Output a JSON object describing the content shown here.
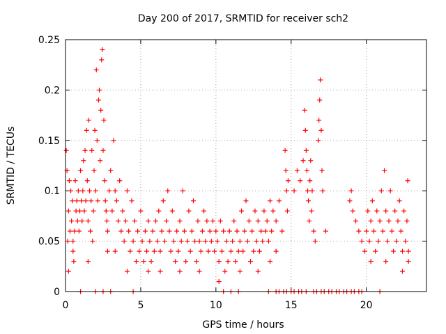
{
  "chart_data": {
    "type": "scatter",
    "title": "Day 200 of 2017, SRMTID for receiver sch2",
    "xlabel": "GPS time / hours",
    "ylabel": "SRMTID / TECUs",
    "xlim": [
      0,
      24
    ],
    "ylim": [
      0,
      0.25
    ],
    "xticks": [
      0,
      5,
      10,
      15,
      20
    ],
    "xtick_labels": [
      "0",
      "5",
      "10",
      "15",
      "20"
    ],
    "yticks": [
      0,
      0.05,
      0.1,
      0.15,
      0.2,
      0.25
    ],
    "ytick_labels": [
      "0",
      "0.05",
      "0.1",
      "0.15",
      "0.2",
      "0.25"
    ],
    "grid": true,
    "marker": "+",
    "color": "#ff0000",
    "series": [
      {
        "name": "SRMTID",
        "points": [
          [
            0.05,
            0.14
          ],
          [
            0.1,
            0.12
          ],
          [
            0.15,
            0.05
          ],
          [
            0.2,
            0.08
          ],
          [
            0.25,
            0.11
          ],
          [
            0.3,
            0.06
          ],
          [
            0.35,
            0.1
          ],
          [
            0.4,
            0.07
          ],
          [
            0.45,
            0.09
          ],
          [
            0.5,
            0.04
          ],
          [
            0.55,
            0.03
          ],
          [
            0.6,
            0.06
          ],
          [
            0.65,
            0.11
          ],
          [
            0.7,
            0.08
          ],
          [
            0.75,
            0.09
          ],
          [
            0.8,
            0.07
          ],
          [
            0.85,
            0.1
          ],
          [
            0.9,
            0.06
          ],
          [
            0.95,
            0.08
          ],
          [
            1.0,
            0.12
          ],
          [
            1.05,
            0.09
          ],
          [
            1.1,
            0.07
          ],
          [
            1.15,
            0.1
          ],
          [
            1.2,
            0.13
          ],
          [
            1.25,
            0.08
          ],
          [
            1.3,
            0.14
          ],
          [
            1.35,
            0.09
          ],
          [
            1.4,
            0.16
          ],
          [
            1.45,
            0.11
          ],
          [
            1.5,
            0.07
          ],
          [
            1.55,
            0.17
          ],
          [
            1.6,
            0.1
          ],
          [
            1.65,
            0.06
          ],
          [
            1.7,
            0.09
          ],
          [
            1.75,
            0.14
          ],
          [
            1.8,
            0.05
          ],
          [
            1.85,
            0.08
          ],
          [
            1.9,
            0.12
          ],
          [
            1.95,
            0.16
          ],
          [
            2.0,
            0.1
          ],
          [
            2.05,
            0.22
          ],
          [
            2.1,
            0.15
          ],
          [
            2.15,
            0.09
          ],
          [
            2.2,
            0.19
          ],
          [
            2.25,
            0.2
          ],
          [
            2.3,
            0.13
          ],
          [
            2.35,
            0.18
          ],
          [
            2.4,
            0.23
          ],
          [
            2.45,
            0.24
          ],
          [
            2.5,
            0.14
          ],
          [
            2.55,
            0.17
          ],
          [
            2.6,
            0.11
          ],
          [
            2.65,
            0.09
          ],
          [
            2.7,
            0.08
          ],
          [
            2.75,
            0.07
          ],
          [
            2.8,
            0.06
          ],
          [
            2.9,
            0.1
          ],
          [
            3.0,
            0.12
          ],
          [
            3.1,
            0.08
          ],
          [
            3.2,
            0.15
          ],
          [
            3.3,
            0.1
          ],
          [
            3.4,
            0.09
          ],
          [
            3.5,
            0.07
          ],
          [
            3.6,
            0.11
          ],
          [
            3.7,
            0.06
          ],
          [
            3.8,
            0.08
          ],
          [
            3.9,
            0.05
          ],
          [
            4.0,
            0.07
          ],
          [
            4.1,
            0.1
          ],
          [
            4.2,
            0.06
          ],
          [
            4.3,
            0.04
          ],
          [
            4.4,
            0.09
          ],
          [
            4.5,
            0.05
          ],
          [
            4.6,
            0.07
          ],
          [
            4.7,
            0.03
          ],
          [
            4.8,
            0.06
          ],
          [
            4.9,
            0.04
          ],
          [
            5.0,
            0.08
          ],
          [
            5.1,
            0.05
          ],
          [
            5.2,
            0.03
          ],
          [
            5.3,
            0.06
          ],
          [
            5.4,
            0.04
          ],
          [
            5.5,
            0.07
          ],
          [
            5.6,
            0.05
          ],
          [
            5.7,
            0.03
          ],
          [
            5.8,
            0.06
          ],
          [
            5.9,
            0.04
          ],
          [
            6.0,
            0.07
          ],
          [
            6.1,
            0.05
          ],
          [
            6.2,
            0.08
          ],
          [
            6.3,
            0.04
          ],
          [
            6.4,
            0.06
          ],
          [
            6.5,
            0.09
          ],
          [
            6.6,
            0.05
          ],
          [
            6.7,
            0.07
          ],
          [
            6.8,
            0.1
          ],
          [
            6.9,
            0.06
          ],
          [
            7.0,
            0.04
          ],
          [
            7.1,
            0.08
          ],
          [
            7.2,
            0.05
          ],
          [
            7.3,
            0.03
          ],
          [
            7.4,
            0.06
          ],
          [
            7.5,
            0.04
          ],
          [
            7.6,
            0.07
          ],
          [
            7.7,
            0.05
          ],
          [
            7.8,
            0.1
          ],
          [
            7.9,
            0.06
          ],
          [
            8.0,
            0.03
          ],
          [
            8.1,
            0.05
          ],
          [
            8.2,
            0.08
          ],
          [
            8.3,
            0.04
          ],
          [
            8.4,
            0.06
          ],
          [
            8.5,
            0.09
          ],
          [
            8.6,
            0.05
          ],
          [
            8.7,
            0.03
          ],
          [
            8.8,
            0.07
          ],
          [
            8.9,
            0.05
          ],
          [
            9.0,
            0.04
          ],
          [
            9.1,
            0.06
          ],
          [
            9.2,
            0.08
          ],
          [
            9.3,
            0.05
          ],
          [
            9.4,
            0.07
          ],
          [
            9.5,
            0.04
          ],
          [
            9.6,
            0.06
          ],
          [
            9.7,
            0.05
          ],
          [
            9.8,
            0.07
          ],
          [
            9.9,
            0.04
          ],
          [
            10.0,
            0.06
          ],
          [
            10.1,
            0.05
          ],
          [
            10.2,
            0.03
          ],
          [
            10.3,
            0.07
          ],
          [
            10.4,
            0.04
          ],
          [
            10.5,
            0.06
          ],
          [
            10.6,
            0.02
          ],
          [
            10.7,
            0.05
          ],
          [
            10.8,
            0.03
          ],
          [
            10.9,
            0.06
          ],
          [
            11.0,
            0.04
          ],
          [
            11.1,
            0.05
          ],
          [
            11.2,
            0.07
          ],
          [
            11.3,
            0.03
          ],
          [
            11.4,
            0.06
          ],
          [
            11.5,
            0.04
          ],
          [
            11.6,
            0.05
          ],
          [
            11.7,
            0.08
          ],
          [
            11.8,
            0.04
          ],
          [
            11.9,
            0.06
          ],
          [
            12.0,
            0.09
          ],
          [
            12.1,
            0.05
          ],
          [
            12.2,
            0.07
          ],
          [
            12.3,
            0.03
          ],
          [
            12.4,
            0.06
          ],
          [
            12.5,
            0.04
          ],
          [
            12.6,
            0.08
          ],
          [
            12.7,
            0.05
          ],
          [
            12.8,
            0.07
          ],
          [
            12.9,
            0.04
          ],
          [
            13.0,
            0.06
          ],
          [
            13.1,
            0.05
          ],
          [
            13.2,
            0.08
          ],
          [
            13.3,
            0.06
          ],
          [
            13.4,
            0.07
          ],
          [
            13.5,
            0.05
          ],
          [
            13.6,
            0.09
          ],
          [
            13.7,
            0.06
          ],
          [
            13.8,
            0.08
          ],
          [
            14.0,
            0.07
          ],
          [
            14.2,
            0.09
          ],
          [
            14.4,
            0.06
          ],
          [
            14.6,
            0.14
          ],
          [
            14.65,
            0.12
          ],
          [
            14.7,
            0.1
          ],
          [
            14.75,
            0.08
          ],
          [
            14.8,
            0.11
          ],
          [
            15.2,
            0.1
          ],
          [
            15.4,
            0.12
          ],
          [
            15.6,
            0.11
          ],
          [
            15.8,
            0.13
          ],
          [
            15.9,
            0.18
          ],
          [
            15.95,
            0.16
          ],
          [
            16.0,
            0.14
          ],
          [
            16.05,
            0.12
          ],
          [
            16.1,
            0.1
          ],
          [
            16.15,
            0.09
          ],
          [
            16.2,
            0.07
          ],
          [
            16.25,
            0.11
          ],
          [
            16.3,
            0.13
          ],
          [
            16.35,
            0.08
          ],
          [
            16.4,
            0.1
          ],
          [
            16.5,
            0.06
          ],
          [
            16.6,
            0.05
          ],
          [
            16.8,
            0.15
          ],
          [
            16.85,
            0.17
          ],
          [
            16.9,
            0.19
          ],
          [
            16.95,
            0.21
          ],
          [
            17.0,
            0.16
          ],
          [
            17.05,
            0.12
          ],
          [
            17.1,
            0.1
          ],
          [
            17.3,
            0.06
          ],
          [
            18.9,
            0.09
          ],
          [
            19.0,
            0.1
          ],
          [
            19.1,
            0.08
          ],
          [
            19.3,
            0.07
          ],
          [
            19.5,
            0.06
          ],
          [
            19.7,
            0.05
          ],
          [
            19.9,
            0.04
          ],
          [
            20.0,
            0.06
          ],
          [
            20.1,
            0.08
          ],
          [
            20.2,
            0.05
          ],
          [
            20.3,
            0.07
          ],
          [
            20.4,
            0.09
          ],
          [
            20.5,
            0.06
          ],
          [
            20.6,
            0.04
          ],
          [
            20.7,
            0.08
          ],
          [
            20.8,
            0.05
          ],
          [
            20.9,
            0.07
          ],
          [
            21.0,
            0.1
          ],
          [
            21.1,
            0.06
          ],
          [
            21.2,
            0.12
          ],
          [
            21.3,
            0.08
          ],
          [
            21.4,
            0.05
          ],
          [
            21.5,
            0.07
          ],
          [
            21.6,
            0.1
          ],
          [
            21.7,
            0.06
          ],
          [
            21.8,
            0.04
          ],
          [
            21.9,
            0.08
          ],
          [
            22.0,
            0.05
          ],
          [
            22.1,
            0.07
          ],
          [
            22.2,
            0.09
          ],
          [
            22.3,
            0.06
          ],
          [
            22.4,
            0.04
          ],
          [
            22.5,
            0.08
          ],
          [
            22.6,
            0.05
          ],
          [
            22.7,
            0.07
          ],
          [
            22.75,
            0.11
          ],
          [
            22.8,
            0.03
          ],
          [
            0.2,
            0.02
          ],
          [
            0.5,
            0.05
          ],
          [
            1.5,
            0.03
          ],
          [
            2.8,
            0.04
          ],
          [
            3.3,
            0.04
          ],
          [
            4.1,
            0.02
          ],
          [
            5.5,
            0.02
          ],
          [
            6.3,
            0.02
          ],
          [
            7.6,
            0.02
          ],
          [
            8.9,
            0.02
          ],
          [
            10.2,
            0.01
          ],
          [
            11.6,
            0.02
          ],
          [
            12.8,
            0.02
          ],
          [
            13.6,
            0.03
          ],
          [
            14.0,
            0.04
          ],
          [
            20.3,
            0.03
          ],
          [
            21.3,
            0.03
          ],
          [
            22.4,
            0.02
          ],
          [
            22.8,
            0.04
          ],
          [
            1.0,
            0.0
          ],
          [
            2.0,
            0.0
          ],
          [
            2.5,
            0.0
          ],
          [
            3.0,
            0.0
          ],
          [
            4.5,
            0.0
          ],
          [
            10.5,
            0.0
          ],
          [
            11.0,
            0.0
          ],
          [
            11.5,
            0.0
          ],
          [
            13.5,
            0.0
          ],
          [
            14.0,
            0.0
          ],
          [
            14.2,
            0.0
          ],
          [
            14.5,
            0.0
          ],
          [
            14.7,
            0.0
          ],
          [
            15.0,
            0.0
          ],
          [
            15.2,
            0.0
          ],
          [
            15.5,
            0.0
          ],
          [
            15.7,
            0.0
          ],
          [
            16.0,
            0.0
          ],
          [
            16.5,
            0.0
          ],
          [
            16.7,
            0.0
          ],
          [
            17.0,
            0.0
          ],
          [
            17.2,
            0.0
          ],
          [
            17.5,
            0.0
          ],
          [
            17.7,
            0.0
          ],
          [
            18.0,
            0.0
          ],
          [
            18.2,
            0.0
          ],
          [
            18.5,
            0.0
          ],
          [
            18.7,
            0.0
          ],
          [
            19.0,
            0.0
          ],
          [
            19.2,
            0.0
          ],
          [
            19.5,
            0.0
          ],
          [
            19.7,
            0.0
          ],
          [
            20.9,
            0.0
          ]
        ]
      }
    ]
  }
}
